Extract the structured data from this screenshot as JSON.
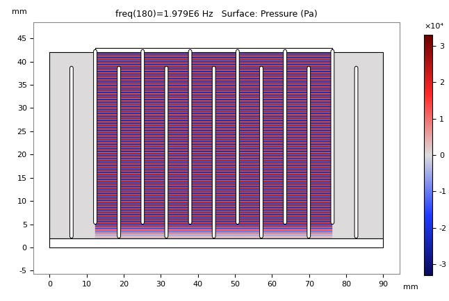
{
  "chart_data": {
    "type": "surface",
    "title": "freq(180)=1.979E6 Hz   Surface: Pressure (Pa)",
    "xlabel": "mm",
    "ylabel": "mm",
    "xlim": [
      -4.3,
      94.4
    ],
    "xticks": [
      0,
      10,
      20,
      30,
      40,
      50,
      60,
      70,
      80,
      90
    ],
    "ylim": [
      -5.7,
      48.4
    ],
    "yticks": [
      -5,
      0,
      5,
      10,
      15,
      20,
      25,
      30,
      35,
      40,
      45
    ],
    "colorbar_range": [
      -33000,
      33000
    ],
    "colorbar_ticks": [
      {
        "value": -30000,
        "label": "-3"
      },
      {
        "value": -20000,
        "label": "-2"
      },
      {
        "value": -10000,
        "label": "-1"
      },
      {
        "value": 0,
        "label": "0"
      },
      {
        "value": 10000,
        "label": "1"
      },
      {
        "value": 20000,
        "label": "2"
      },
      {
        "value": 30000,
        "label": "3"
      }
    ],
    "colorbar_label": "×10⁴"
  }
}
